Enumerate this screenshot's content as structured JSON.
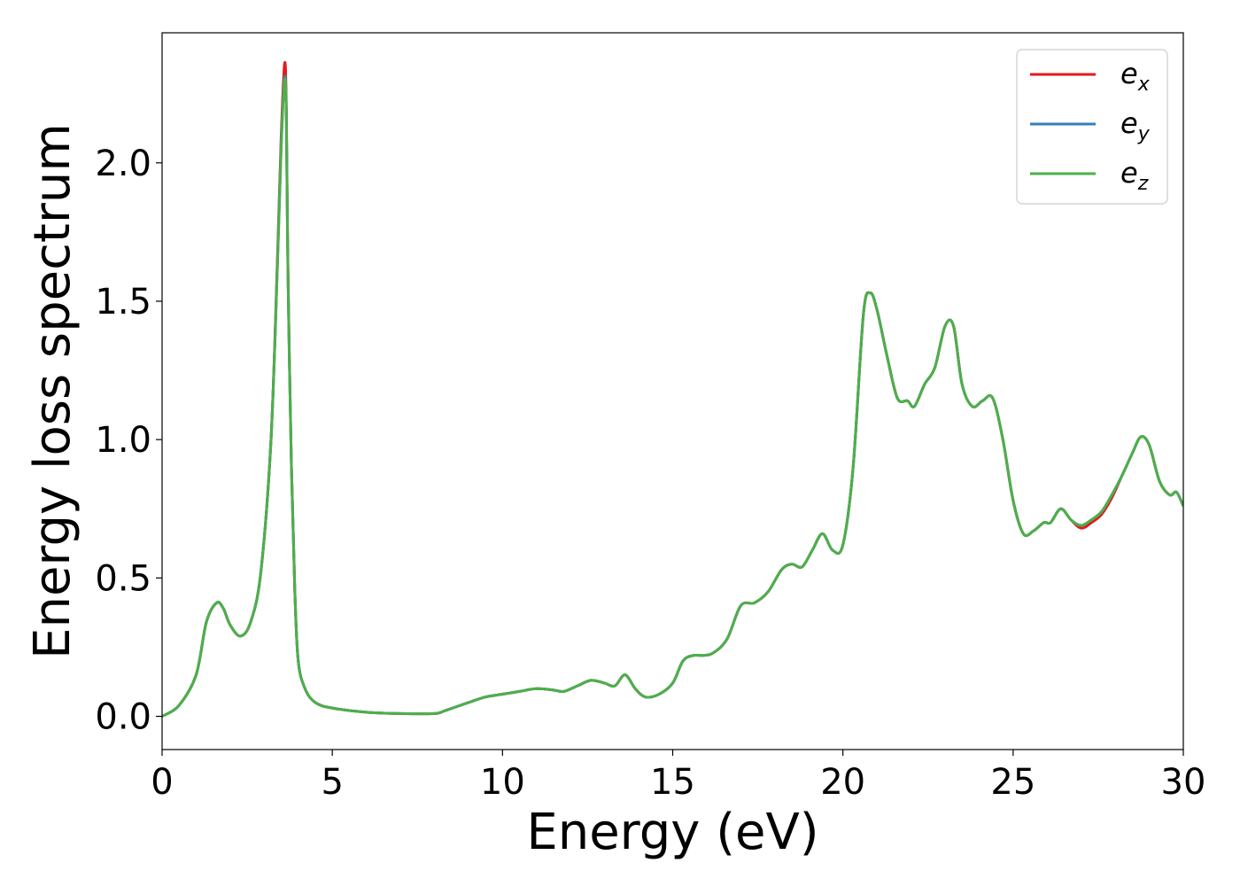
{
  "chart_data": {
    "type": "line",
    "xlabel": "Energy (eV)",
    "ylabel": "Energy loss spectrum",
    "xlim": [
      0,
      30
    ],
    "ylim": [
      -0.12,
      2.47
    ],
    "xticks": [
      0,
      5,
      10,
      15,
      20,
      25,
      30
    ],
    "xtick_labels": [
      "0",
      "5",
      "10",
      "15",
      "20",
      "25",
      "30"
    ],
    "yticks": [
      0.0,
      0.5,
      1.0,
      1.5,
      2.0
    ],
    "ytick_labels": [
      "0.0",
      "0.5",
      "1.0",
      "1.5",
      "2.0"
    ],
    "grid": false,
    "legend_position": "top-right",
    "series": [
      {
        "name": "e_x",
        "legend_main": "e",
        "legend_sub": "x",
        "color": "#e41a1c",
        "x": [
          0,
          0.5,
          1,
          1.3,
          1.6,
          1.8,
          2.0,
          2.3,
          2.6,
          2.9,
          3.2,
          3.4,
          3.5,
          3.6,
          3.65,
          3.7,
          3.8,
          3.9,
          4.0,
          4.2,
          4.5,
          5,
          6,
          7,
          8,
          8.3,
          9,
          9.5,
          10,
          10.5,
          11,
          11.5,
          11.8,
          12.2,
          12.6,
          13.0,
          13.3,
          13.6,
          13.9,
          14.2,
          14.6,
          15.0,
          15.3,
          15.6,
          15.9,
          16.2,
          16.6,
          17.0,
          17.4,
          17.8,
          18.2,
          18.5,
          18.8,
          19.1,
          19.4,
          19.7,
          20.0,
          20.3,
          20.6,
          20.8,
          21.0,
          21.3,
          21.6,
          21.9,
          22.1,
          22.4,
          22.7,
          23.0,
          23.25,
          23.5,
          23.8,
          24.1,
          24.4,
          24.7,
          25.0,
          25.3,
          25.6,
          25.9,
          26.1,
          26.4,
          26.7,
          27.0,
          27.3,
          27.6,
          27.9,
          28.2,
          28.5,
          28.75,
          29.0,
          29.3,
          29.6,
          29.8,
          30.0
        ],
        "y": [
          0.0,
          0.04,
          0.15,
          0.34,
          0.41,
          0.39,
          0.33,
          0.29,
          0.34,
          0.52,
          1.0,
          1.7,
          2.1,
          2.36,
          2.2,
          1.6,
          0.9,
          0.45,
          0.2,
          0.1,
          0.05,
          0.03,
          0.015,
          0.01,
          0.01,
          0.02,
          0.05,
          0.07,
          0.08,
          0.09,
          0.1,
          0.095,
          0.09,
          0.11,
          0.13,
          0.12,
          0.11,
          0.15,
          0.1,
          0.07,
          0.08,
          0.12,
          0.2,
          0.22,
          0.22,
          0.23,
          0.28,
          0.4,
          0.41,
          0.45,
          0.53,
          0.55,
          0.54,
          0.6,
          0.66,
          0.6,
          0.62,
          0.9,
          1.45,
          1.53,
          1.47,
          1.3,
          1.15,
          1.14,
          1.12,
          1.2,
          1.26,
          1.41,
          1.41,
          1.2,
          1.12,
          1.14,
          1.15,
          1.0,
          0.78,
          0.66,
          0.67,
          0.7,
          0.7,
          0.75,
          0.71,
          0.68,
          0.7,
          0.73,
          0.79,
          0.87,
          0.95,
          1.01,
          0.98,
          0.85,
          0.8,
          0.81,
          0.76
        ]
      },
      {
        "name": "e_y",
        "legend_main": "e",
        "legend_sub": "y",
        "color": "#377eb8",
        "x": [
          0,
          0.5,
          1,
          1.3,
          1.6,
          1.8,
          2.0,
          2.3,
          2.6,
          2.9,
          3.2,
          3.4,
          3.5,
          3.6,
          3.65,
          3.7,
          3.8,
          3.9,
          4.0,
          4.2,
          4.5,
          5,
          6,
          7,
          8,
          8.3,
          9,
          9.5,
          10,
          10.5,
          11,
          11.5,
          11.8,
          12.2,
          12.6,
          13.0,
          13.3,
          13.6,
          13.9,
          14.2,
          14.6,
          15.0,
          15.3,
          15.6,
          15.9,
          16.2,
          16.6,
          17.0,
          17.4,
          17.8,
          18.2,
          18.5,
          18.8,
          19.1,
          19.4,
          19.7,
          20.0,
          20.3,
          20.6,
          20.8,
          21.0,
          21.3,
          21.6,
          21.9,
          22.1,
          22.4,
          22.7,
          23.0,
          23.25,
          23.5,
          23.8,
          24.1,
          24.4,
          24.7,
          25.0,
          25.3,
          25.6,
          25.9,
          26.1,
          26.4,
          26.7,
          27.0,
          27.3,
          27.6,
          27.9,
          28.2,
          28.5,
          28.75,
          29.0,
          29.3,
          29.6,
          29.8,
          30.0
        ],
        "y": [
          0.0,
          0.04,
          0.15,
          0.34,
          0.41,
          0.39,
          0.33,
          0.29,
          0.34,
          0.52,
          1.0,
          1.68,
          2.07,
          2.31,
          2.17,
          1.58,
          0.9,
          0.45,
          0.2,
          0.1,
          0.05,
          0.03,
          0.015,
          0.01,
          0.01,
          0.02,
          0.05,
          0.07,
          0.08,
          0.09,
          0.1,
          0.095,
          0.09,
          0.11,
          0.13,
          0.12,
          0.11,
          0.15,
          0.1,
          0.07,
          0.08,
          0.12,
          0.2,
          0.22,
          0.22,
          0.23,
          0.28,
          0.4,
          0.41,
          0.45,
          0.53,
          0.55,
          0.54,
          0.6,
          0.66,
          0.6,
          0.62,
          0.9,
          1.45,
          1.53,
          1.47,
          1.3,
          1.15,
          1.14,
          1.12,
          1.2,
          1.26,
          1.41,
          1.41,
          1.2,
          1.12,
          1.14,
          1.15,
          1.0,
          0.78,
          0.66,
          0.67,
          0.7,
          0.7,
          0.75,
          0.71,
          0.69,
          0.71,
          0.74,
          0.8,
          0.87,
          0.95,
          1.01,
          0.98,
          0.85,
          0.8,
          0.81,
          0.76
        ]
      },
      {
        "name": "e_z",
        "legend_main": "e",
        "legend_sub": "z",
        "color": "#4daf4a",
        "x": [
          0,
          0.5,
          1,
          1.3,
          1.6,
          1.8,
          2.0,
          2.3,
          2.6,
          2.9,
          3.2,
          3.4,
          3.5,
          3.6,
          3.65,
          3.7,
          3.8,
          3.9,
          4.0,
          4.2,
          4.5,
          5,
          6,
          7,
          8,
          8.3,
          9,
          9.5,
          10,
          10.5,
          11,
          11.5,
          11.8,
          12.2,
          12.6,
          13.0,
          13.3,
          13.6,
          13.9,
          14.2,
          14.6,
          15.0,
          15.3,
          15.6,
          15.9,
          16.2,
          16.6,
          17.0,
          17.4,
          17.8,
          18.2,
          18.5,
          18.8,
          19.1,
          19.4,
          19.7,
          20.0,
          20.3,
          20.6,
          20.8,
          21.0,
          21.3,
          21.6,
          21.9,
          22.1,
          22.4,
          22.7,
          23.0,
          23.25,
          23.5,
          23.8,
          24.1,
          24.4,
          24.7,
          25.0,
          25.3,
          25.6,
          25.9,
          26.1,
          26.4,
          26.7,
          27.0,
          27.3,
          27.6,
          27.9,
          28.2,
          28.5,
          28.75,
          29.0,
          29.3,
          29.6,
          29.8,
          30.0
        ],
        "y": [
          0.0,
          0.04,
          0.15,
          0.34,
          0.41,
          0.39,
          0.33,
          0.29,
          0.34,
          0.52,
          1.0,
          1.67,
          2.06,
          2.3,
          2.16,
          1.58,
          0.9,
          0.45,
          0.2,
          0.1,
          0.05,
          0.03,
          0.015,
          0.01,
          0.01,
          0.02,
          0.05,
          0.07,
          0.08,
          0.09,
          0.1,
          0.095,
          0.09,
          0.11,
          0.13,
          0.12,
          0.11,
          0.15,
          0.1,
          0.07,
          0.08,
          0.12,
          0.2,
          0.22,
          0.22,
          0.23,
          0.28,
          0.4,
          0.41,
          0.45,
          0.53,
          0.55,
          0.54,
          0.6,
          0.66,
          0.6,
          0.62,
          0.9,
          1.45,
          1.53,
          1.47,
          1.3,
          1.15,
          1.14,
          1.12,
          1.2,
          1.26,
          1.41,
          1.41,
          1.2,
          1.12,
          1.14,
          1.15,
          1.0,
          0.78,
          0.66,
          0.67,
          0.7,
          0.7,
          0.75,
          0.71,
          0.69,
          0.71,
          0.74,
          0.8,
          0.87,
          0.95,
          1.01,
          0.98,
          0.85,
          0.8,
          0.81,
          0.76
        ]
      }
    ]
  }
}
